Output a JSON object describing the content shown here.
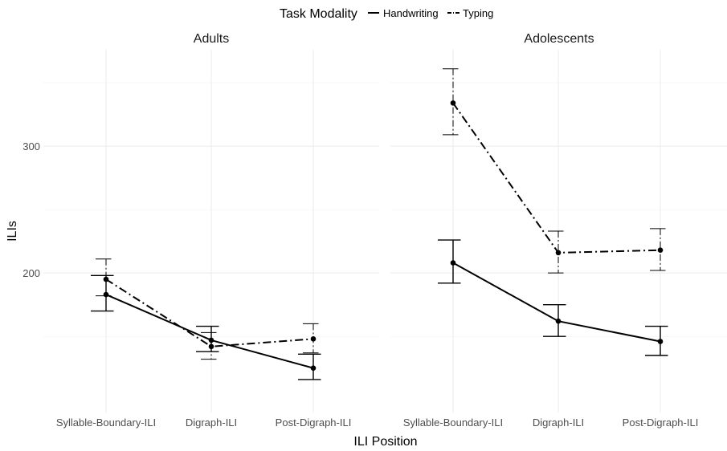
{
  "chart_data": {
    "type": "line",
    "xlabel": "ILI Position",
    "ylabel": "ILIs",
    "ylim": [
      90,
      376
    ],
    "y_ticks": [
      200,
      300
    ],
    "y_tick_labels": [
      "200",
      "300"
    ],
    "categories": [
      "Syllable-Boundary-ILI",
      "Digraph-ILI",
      "Post-Digraph-ILI"
    ],
    "grid": true,
    "legend": {
      "title": "Task Modality",
      "position": "top",
      "entries": [
        {
          "label": "Handwriting",
          "linestyle": "solid"
        },
        {
          "label": "Typing",
          "linestyle": "dashdot"
        }
      ]
    },
    "colors": {
      "line": "#000000",
      "grid": "#ebebeb",
      "text": "#4d4d4d"
    },
    "panels": [
      {
        "title": "Adults",
        "series": [
          {
            "name": "Handwriting",
            "values": [
              183,
              147,
              125
            ],
            "err_low": [
              170,
              138,
              116
            ],
            "err_high": [
              198,
              158,
              136
            ]
          },
          {
            "name": "Typing",
            "values": [
              195,
              142,
              148
            ],
            "err_low": [
              182,
              132,
              137
            ],
            "err_high": [
              211,
              153,
              160
            ]
          }
        ]
      },
      {
        "title": "Adolescents",
        "series": [
          {
            "name": "Handwriting",
            "values": [
              208,
              162,
              146
            ],
            "err_low": [
              192,
              150,
              135
            ],
            "err_high": [
              226,
              175,
              158
            ]
          },
          {
            "name": "Typing",
            "values": [
              334,
              216,
              218
            ],
            "err_low": [
              309,
              200,
              202
            ],
            "err_high": [
              361,
              233,
              235
            ]
          }
        ]
      }
    ]
  }
}
